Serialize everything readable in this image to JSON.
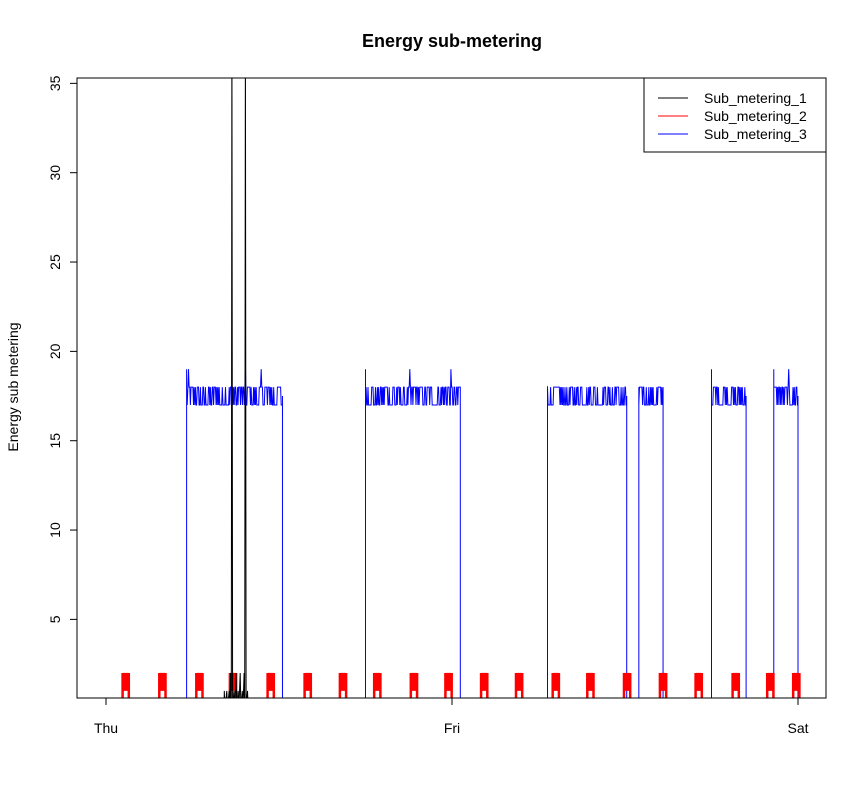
{
  "chart_data": {
    "type": "line",
    "title": "Energy sub-metering",
    "xlabel": "",
    "ylabel": "Energy sub metering",
    "x_ticks": [
      "Thu",
      "Fri",
      "Sat"
    ],
    "y_ticks": [
      5,
      10,
      15,
      20,
      25,
      30,
      35
    ],
    "xlim_days": [
      0,
      2
    ],
    "ylim": [
      0.6,
      35.3
    ],
    "legend_position": "top-right",
    "series": [
      {
        "name": "Sub_metering_1",
        "color": "#000000",
        "points": [
          [
            0.0,
            0
          ],
          [
            0.341,
            0
          ],
          [
            0.342,
            1
          ],
          [
            0.344,
            0
          ],
          [
            0.349,
            1
          ],
          [
            0.351,
            0
          ],
          [
            0.356,
            1
          ],
          [
            0.358,
            0
          ],
          [
            0.36,
            2
          ],
          [
            0.362,
            0
          ],
          [
            0.364,
            39
          ],
          [
            0.366,
            0
          ],
          [
            0.37,
            1
          ],
          [
            0.372,
            0
          ],
          [
            0.376,
            2
          ],
          [
            0.378,
            0
          ],
          [
            0.382,
            1
          ],
          [
            0.384,
            0
          ],
          [
            0.388,
            2
          ],
          [
            0.39,
            0
          ],
          [
            0.394,
            1
          ],
          [
            0.396,
            0
          ],
          [
            0.399,
            2
          ],
          [
            0.401,
            0
          ],
          [
            0.403,
            38
          ],
          [
            0.405,
            0
          ],
          [
            0.409,
            1
          ],
          [
            0.411,
            0
          ],
          [
            0.416,
            0
          ],
          [
            2.0,
            0
          ]
        ]
      },
      {
        "name": "Sub_metering_2",
        "color": "#ff0000",
        "pulse_centers": [
          0.057,
          0.163,
          0.27,
          0.367,
          0.476,
          0.583,
          0.685,
          0.784,
          0.89,
          0.99,
          1.093,
          1.194,
          1.3,
          1.4,
          1.506,
          1.61,
          1.713,
          1.82,
          1.92,
          1.995
        ],
        "pulse_width": 0.018,
        "pulse_value": 2,
        "baseline": 0
      },
      {
        "name": "Sub_metering_3",
        "color": "#0000ff",
        "segments": [
          {
            "x": [
              0.0,
              0.233
            ],
            "level": 0
          },
          {
            "x": [
              0.233,
              0.51
            ],
            "level": 17.5,
            "hi": 19,
            "lo": 16
          },
          {
            "x": [
              0.51,
              0.75
            ],
            "level": 0
          },
          {
            "x": [
              0.75,
              1.024
            ],
            "level": 17.5,
            "hi": 19,
            "lo": 16
          },
          {
            "x": [
              1.024,
              1.276
            ],
            "level": 0
          },
          {
            "x": [
              1.276,
              1.505
            ],
            "level": 17.5,
            "hi": 18,
            "lo": 8.5
          },
          {
            "x": [
              1.505,
              1.54
            ],
            "level": 0
          },
          {
            "x": [
              1.54,
              1.61
            ],
            "level": 17.5,
            "hi": 18,
            "lo": 12.5
          },
          {
            "x": [
              1.61,
              1.75
            ],
            "level": 0
          },
          {
            "x": [
              1.75,
              1.85
            ],
            "level": 17.5,
            "hi": 19,
            "lo": 2.5
          },
          {
            "x": [
              1.85,
              1.93
            ],
            "level": 0
          },
          {
            "x": [
              1.93,
              2.0
            ],
            "level": 17.5,
            "hi": 19,
            "lo": 17
          }
        ]
      }
    ]
  }
}
